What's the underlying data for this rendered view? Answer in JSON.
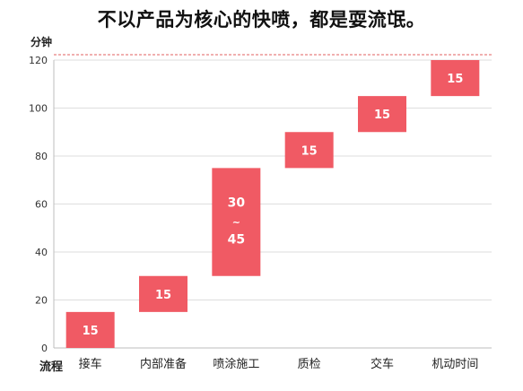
{
  "chart_data": {
    "type": "bar",
    "subtype": "floating",
    "title": "不以产品为核心的快喷，都是耍流氓。",
    "ylabel": "分钟",
    "xlabel": "流程",
    "ylim": [
      0,
      120
    ],
    "yticks": [
      0,
      20,
      40,
      60,
      80,
      100,
      120
    ],
    "grid": true,
    "bar_color": "#f05a64",
    "reference_line_color": "#e06060",
    "categories": [
      "接车",
      "内部准备",
      "喷涂施工",
      "质检",
      "交车",
      "机动时间"
    ],
    "bars": [
      {
        "category": "接车",
        "start": 0,
        "end": 15,
        "label": "15"
      },
      {
        "category": "内部准备",
        "start": 15,
        "end": 30,
        "label": "15"
      },
      {
        "category": "喷涂施工",
        "start": 30,
        "end": 75,
        "label_top": "30",
        "label_mid": "~",
        "label_bottom": "45"
      },
      {
        "category": "质检",
        "start": 75,
        "end": 90,
        "label": "15"
      },
      {
        "category": "交车",
        "start": 90,
        "end": 105,
        "label": "15"
      },
      {
        "category": "机动时间",
        "start": 105,
        "end": 120,
        "label": "15"
      }
    ]
  }
}
